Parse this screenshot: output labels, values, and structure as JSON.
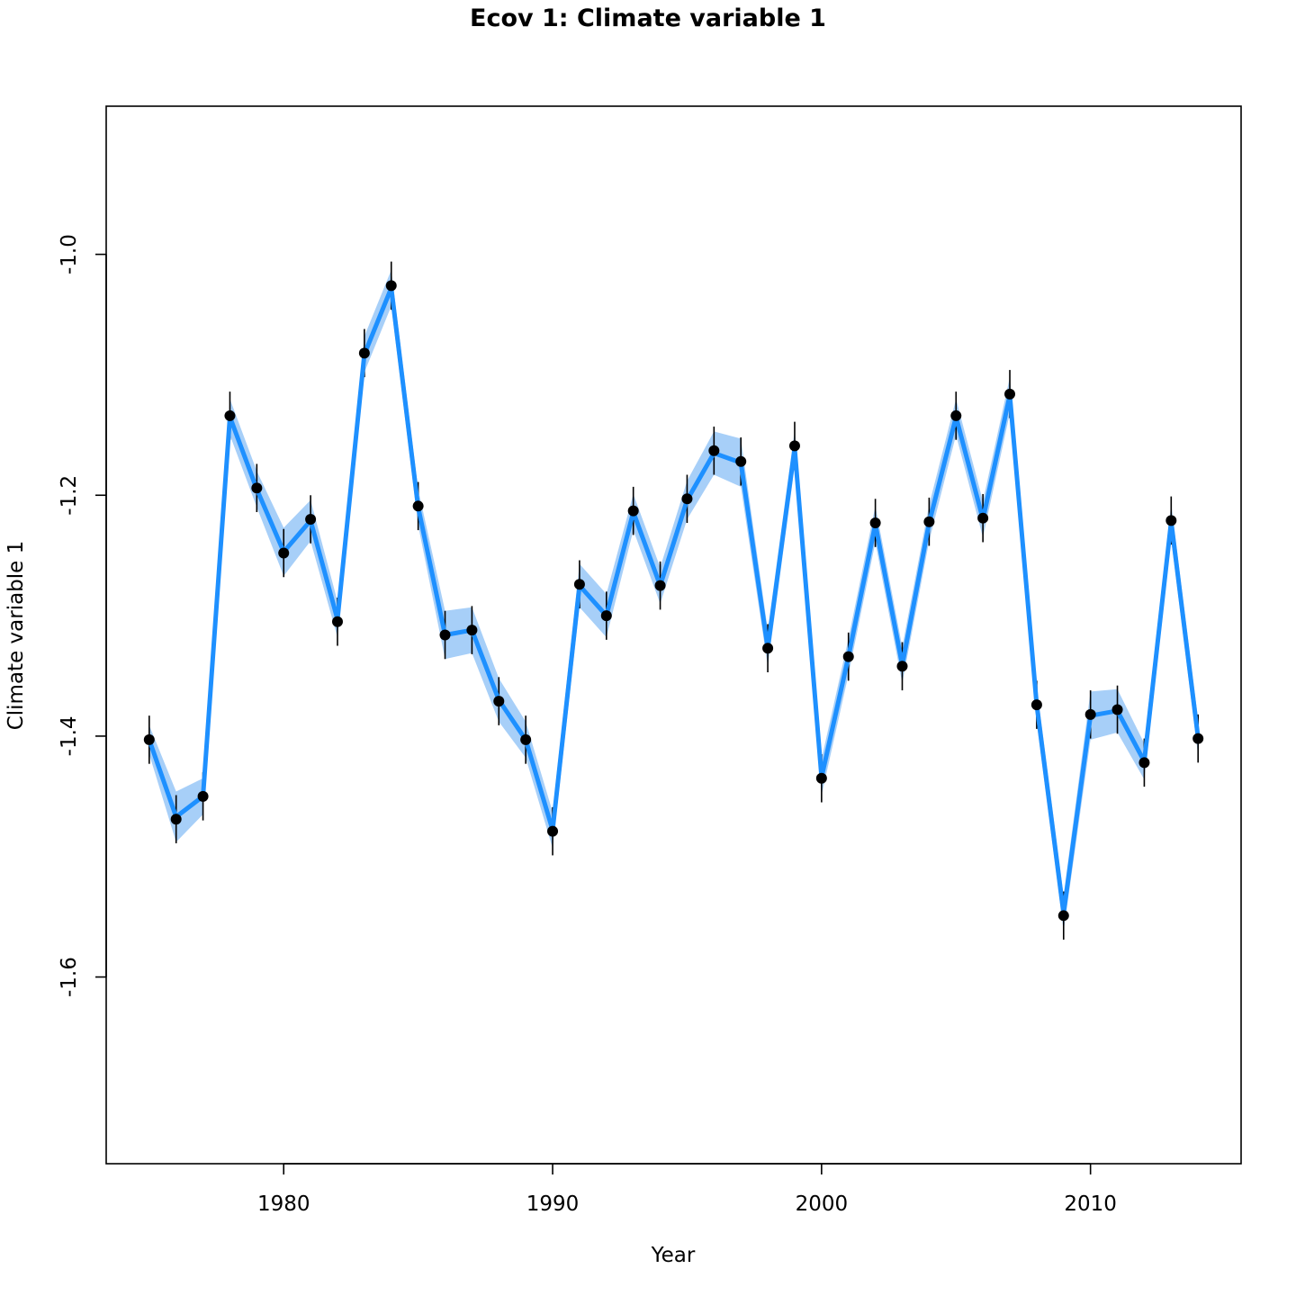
{
  "chart_data": {
    "type": "line",
    "title": "Ecov 1: Climate variable 1",
    "xlabel": "Year",
    "ylabel": "Climate variable 1",
    "xlim": [
      1973.4,
      2015.6
    ],
    "ylim": [
      -1.755,
      -0.877
    ],
    "xticks": [
      1980,
      1990,
      2000,
      2010
    ],
    "yticks": [
      -1.0,
      -1.2,
      -1.4,
      -1.6
    ],
    "grid": false,
    "legend": "none",
    "colors": {
      "line": "#1E90FF",
      "band": "#A7CFF8",
      "points": "#000000",
      "error_bars": "#000000"
    },
    "series": [
      {
        "years": [
          1975,
          1976,
          1977,
          1978,
          1979,
          1980,
          1981,
          1982,
          1983,
          1984,
          1985,
          1986,
          1987,
          1988,
          1989,
          1990,
          1991,
          1992,
          1993,
          1994,
          1995,
          1996,
          1997,
          1998,
          1999,
          2000,
          2001,
          2002,
          2003,
          2004,
          2005,
          2006,
          2007,
          2008,
          2009,
          2010,
          2011,
          2012,
          2013,
          2014
        ],
        "observed": [
          -1.403,
          -1.469,
          -1.45,
          -1.134,
          -1.194,
          -1.248,
          -1.22,
          -1.305,
          -1.082,
          -1.026,
          -1.209,
          -1.316,
          -1.312,
          -1.371,
          -1.403,
          -1.479,
          -1.274,
          -1.3,
          -1.213,
          -1.275,
          -1.203,
          -1.163,
          -1.172,
          -1.327,
          -1.159,
          -1.435,
          -1.334,
          -1.223,
          -1.342,
          -1.222,
          -1.134,
          -1.219,
          -1.116,
          -1.374,
          -1.549,
          -1.382,
          -1.378,
          -1.422,
          -1.221,
          -1.402
        ],
        "obs_lower": [
          -1.423,
          -1.489,
          -1.47,
          -1.154,
          -1.214,
          -1.268,
          -1.24,
          -1.325,
          -1.102,
          -1.046,
          -1.229,
          -1.336,
          -1.332,
          -1.391,
          -1.423,
          -1.499,
          -1.294,
          -1.32,
          -1.233,
          -1.295,
          -1.223,
          -1.183,
          -1.192,
          -1.347,
          -1.179,
          -1.455,
          -1.354,
          -1.243,
          -1.362,
          -1.242,
          -1.154,
          -1.239,
          -1.136,
          -1.394,
          -1.569,
          -1.402,
          -1.398,
          -1.442,
          -1.241,
          -1.422
        ],
        "obs_upper": [
          -1.383,
          -1.449,
          -1.43,
          -1.114,
          -1.174,
          -1.228,
          -1.2,
          -1.285,
          -1.062,
          -1.006,
          -1.189,
          -1.296,
          -1.292,
          -1.351,
          -1.383,
          -1.459,
          -1.254,
          -1.28,
          -1.193,
          -1.255,
          -1.183,
          -1.143,
          -1.152,
          -1.307,
          -1.139,
          -1.415,
          -1.314,
          -1.203,
          -1.322,
          -1.202,
          -1.114,
          -1.199,
          -1.096,
          -1.354,
          -1.529,
          -1.362,
          -1.358,
          -1.402,
          -1.201,
          -1.382
        ],
        "fitted": [
          -1.403,
          -1.467,
          -1.45,
          -1.135,
          -1.195,
          -1.247,
          -1.221,
          -1.303,
          -1.083,
          -1.028,
          -1.21,
          -1.316,
          -1.312,
          -1.37,
          -1.403,
          -1.478,
          -1.275,
          -1.3,
          -1.214,
          -1.275,
          -1.204,
          -1.165,
          -1.173,
          -1.327,
          -1.161,
          -1.434,
          -1.334,
          -1.224,
          -1.341,
          -1.223,
          -1.135,
          -1.22,
          -1.117,
          -1.374,
          -1.547,
          -1.383,
          -1.379,
          -1.421,
          -1.222,
          -1.401
        ],
        "fit_lower": [
          -1.415,
          -1.488,
          -1.465,
          -1.15,
          -1.21,
          -1.267,
          -1.238,
          -1.318,
          -1.098,
          -1.043,
          -1.225,
          -1.336,
          -1.331,
          -1.388,
          -1.418,
          -1.493,
          -1.293,
          -1.318,
          -1.229,
          -1.29,
          -1.22,
          -1.183,
          -1.193,
          -1.342,
          -1.176,
          -1.449,
          -1.349,
          -1.239,
          -1.356,
          -1.238,
          -1.15,
          -1.235,
          -1.132,
          -1.389,
          -1.562,
          -1.403,
          -1.397,
          -1.436,
          -1.237,
          -1.416
        ],
        "fit_upper": [
          -1.391,
          -1.446,
          -1.435,
          -1.12,
          -1.18,
          -1.227,
          -1.204,
          -1.288,
          -1.068,
          -1.013,
          -1.195,
          -1.296,
          -1.293,
          -1.352,
          -1.388,
          -1.463,
          -1.257,
          -1.282,
          -1.199,
          -1.26,
          -1.188,
          -1.147,
          -1.153,
          -1.312,
          -1.146,
          -1.419,
          -1.319,
          -1.209,
          -1.326,
          -1.208,
          -1.12,
          -1.205,
          -1.102,
          -1.359,
          -1.532,
          -1.363,
          -1.361,
          -1.406,
          -1.207,
          -1.386
        ]
      }
    ]
  }
}
